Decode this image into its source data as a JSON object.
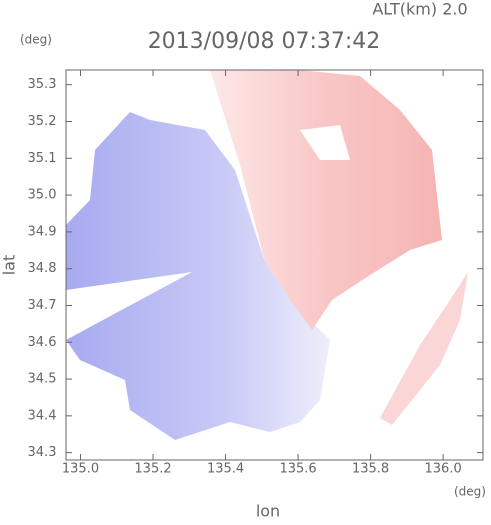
{
  "chart_data": {
    "type": "heatmap",
    "title": "2013/09/08 07:37:42",
    "annotation": "ALT(km) 2.0",
    "x_label": "lon",
    "y_label": "lat",
    "x_unit": "(deg)",
    "y_unit": "(deg)",
    "xlim": [
      134.96,
      136.11
    ],
    "ylim": [
      34.28,
      35.34
    ],
    "xticks": [
      {
        "value": 135,
        "label": "135.0"
      },
      135.2,
      135.4,
      135.6,
      135.8,
      {
        "value": 136,
        "label": "136.0"
      }
    ],
    "yticks": [
      34.3,
      34.4,
      34.5,
      34.6,
      34.7,
      34.8,
      34.9,
      {
        "value": 35,
        "label": "35.0"
      },
      35.1,
      35.2,
      35.3
    ]
  }
}
